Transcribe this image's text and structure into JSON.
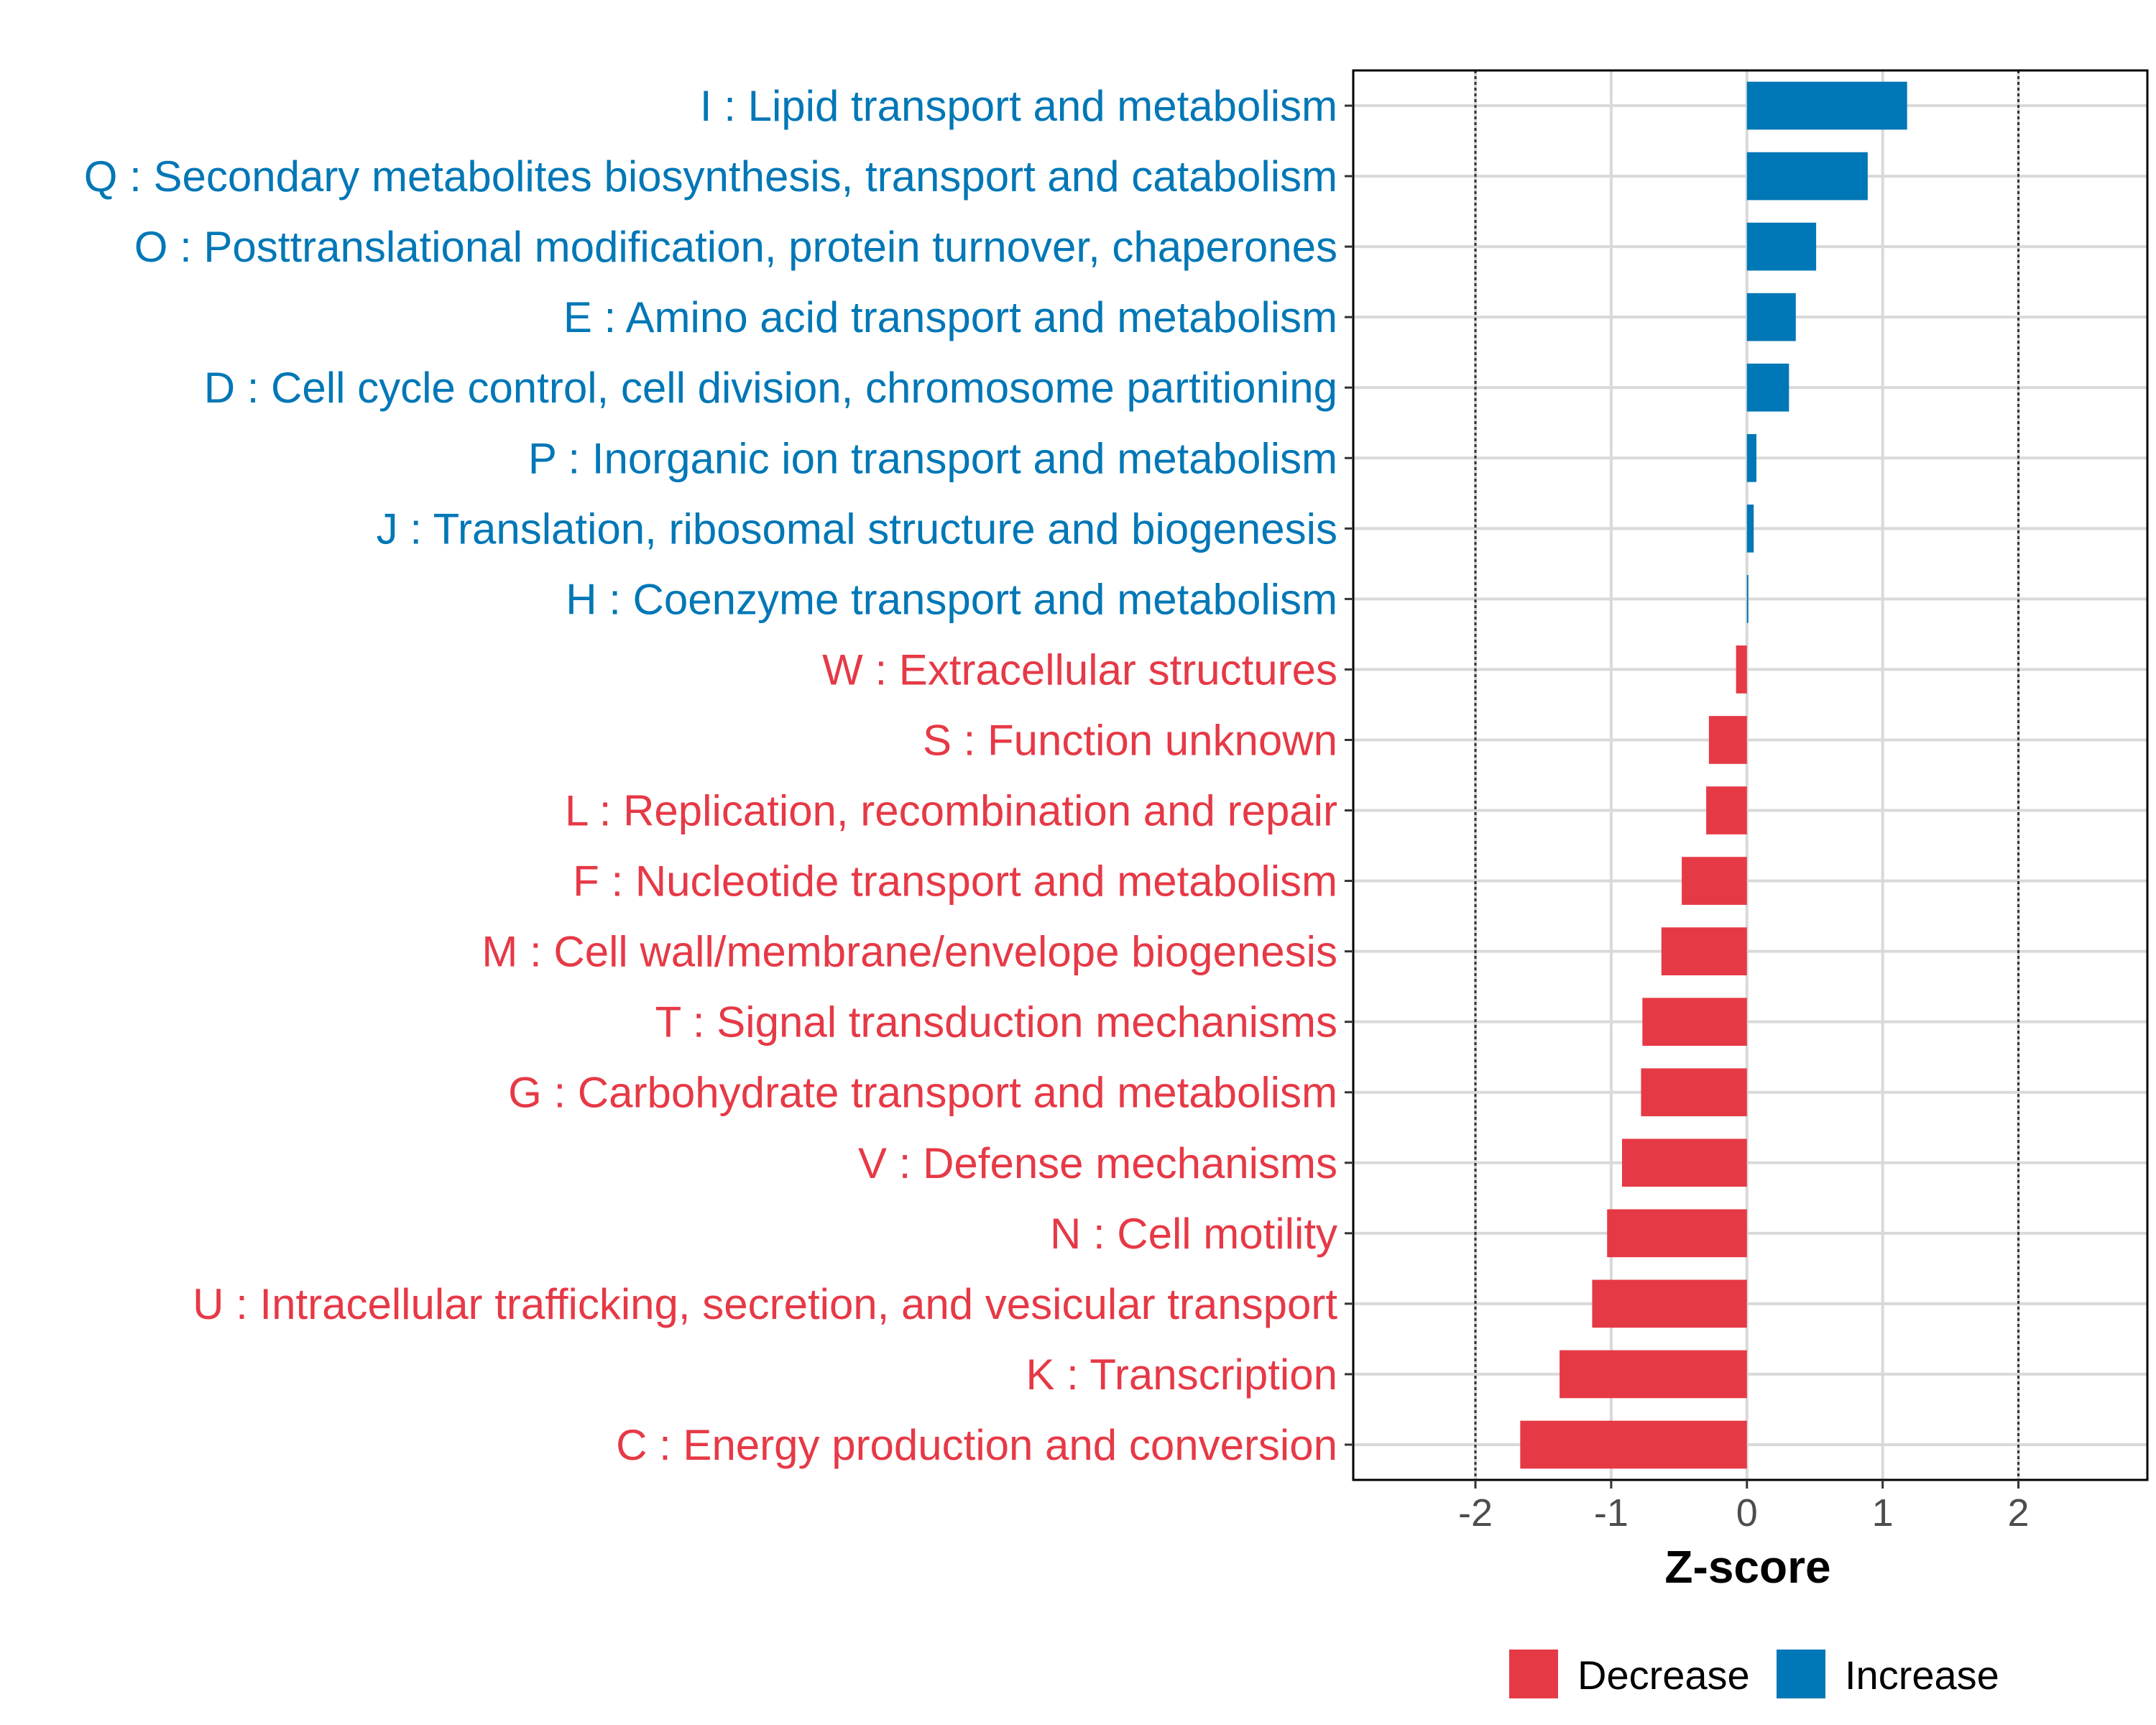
{
  "chart_data": {
    "type": "bar",
    "orientation": "horizontal",
    "xlabel": "Z-score",
    "xlim": [
      -2.9,
      2.95
    ],
    "x_ticks": [
      -2,
      -1,
      0,
      1,
      2
    ],
    "x_tick_labels": [
      "-2",
      "-1",
      "0",
      "1",
      "2"
    ],
    "reference_lines": [
      -2,
      2
    ],
    "categories": [
      "I : Lipid transport and metabolism",
      "Q : Secondary metabolites biosynthesis, transport and catabolism",
      "O : Posttranslational modification, protein turnover, chaperones",
      "E : Amino acid transport and metabolism",
      "D : Cell cycle control, cell division, chromosome partitioning",
      "P : Inorganic ion transport and metabolism",
      "J : Translation, ribosomal structure and biogenesis",
      "H : Coenzyme transport and metabolism",
      "W : Extracellular structures",
      "S : Function unknown",
      "L : Replication, recombination and repair",
      "F : Nucleotide transport and metabolism",
      "M : Cell wall/membrane/envelope biogenesis",
      "T : Signal transduction mechanisms",
      "G : Carbohydrate transport and metabolism",
      "V : Defense mechanisms",
      "N : Cell motility",
      "U : Intracellular trafficking, secretion, and vesicular transport",
      "K : Transcription",
      "C : Energy production and conversion"
    ],
    "values": [
      1.18,
      0.89,
      0.51,
      0.36,
      0.31,
      0.07,
      0.05,
      0.01,
      -0.08,
      -0.28,
      -0.3,
      -0.48,
      -0.63,
      -0.77,
      -0.78,
      -0.92,
      -1.03,
      -1.14,
      -1.38,
      -1.67
    ],
    "groups": [
      "Increase",
      "Increase",
      "Increase",
      "Increase",
      "Increase",
      "Increase",
      "Increase",
      "Increase",
      "Decrease",
      "Decrease",
      "Decrease",
      "Decrease",
      "Decrease",
      "Decrease",
      "Decrease",
      "Decrease",
      "Decrease",
      "Decrease",
      "Decrease",
      "Decrease"
    ],
    "legend": [
      {
        "label": "Decrease",
        "color": "#E63946"
      },
      {
        "label": "Increase",
        "color": "#0077B6"
      }
    ],
    "legend_position": "bottom"
  }
}
